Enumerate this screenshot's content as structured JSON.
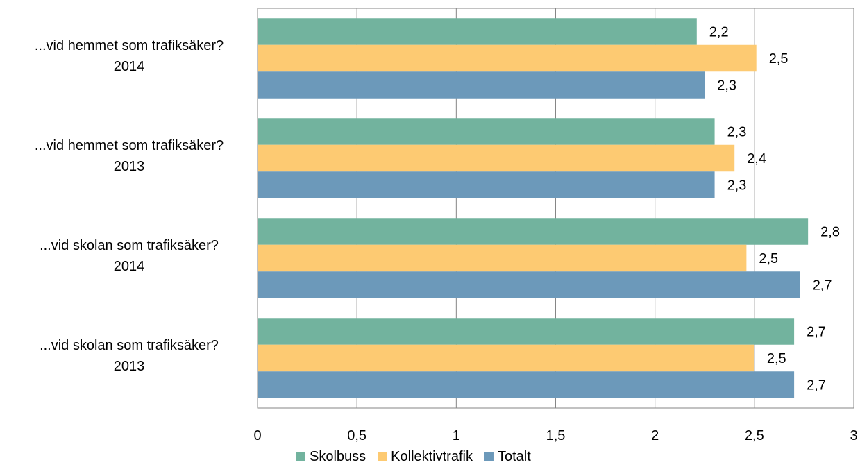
{
  "chart_data": {
    "type": "bar",
    "orientation": "horizontal",
    "categories": [
      {
        "line1": "...vid hemmet som trafiksäker?",
        "line2": "2014"
      },
      {
        "line1": "...vid hemmet som trafiksäker?",
        "line2": "2013"
      },
      {
        "line1": "...vid skolan som trafiksäker?",
        "line2": "2014"
      },
      {
        "line1": "...vid skolan som trafiksäker?",
        "line2": "2013"
      }
    ],
    "series": [
      {
        "name": "Skolbuss",
        "color": "#72b39e",
        "values": [
          2.21,
          2.3,
          2.77,
          2.7
        ],
        "labels": [
          "2,2",
          "2,3",
          "2,8",
          "2,7"
        ]
      },
      {
        "name": "Kollektivtrafik",
        "color": "#fdca72",
        "values": [
          2.51,
          2.4,
          2.46,
          2.5
        ],
        "labels": [
          "2,5",
          "2,4",
          "2,5",
          "2,5"
        ]
      },
      {
        "name": "Totalt",
        "color": "#6c99ba",
        "values": [
          2.25,
          2.3,
          2.73,
          2.7
        ],
        "labels": [
          "2,3",
          "2,3",
          "2,7",
          "2,7"
        ]
      }
    ],
    "xlim": [
      0,
      3
    ],
    "xticks": [
      0,
      0.5,
      1,
      1.5,
      2,
      2.5,
      3
    ],
    "xtick_labels": [
      "0",
      "0,5",
      "1",
      "1,5",
      "2",
      "2,5",
      "3"
    ],
    "grid": "vertical",
    "legend_position": "bottom",
    "title": "",
    "xlabel": "",
    "ylabel": ""
  }
}
